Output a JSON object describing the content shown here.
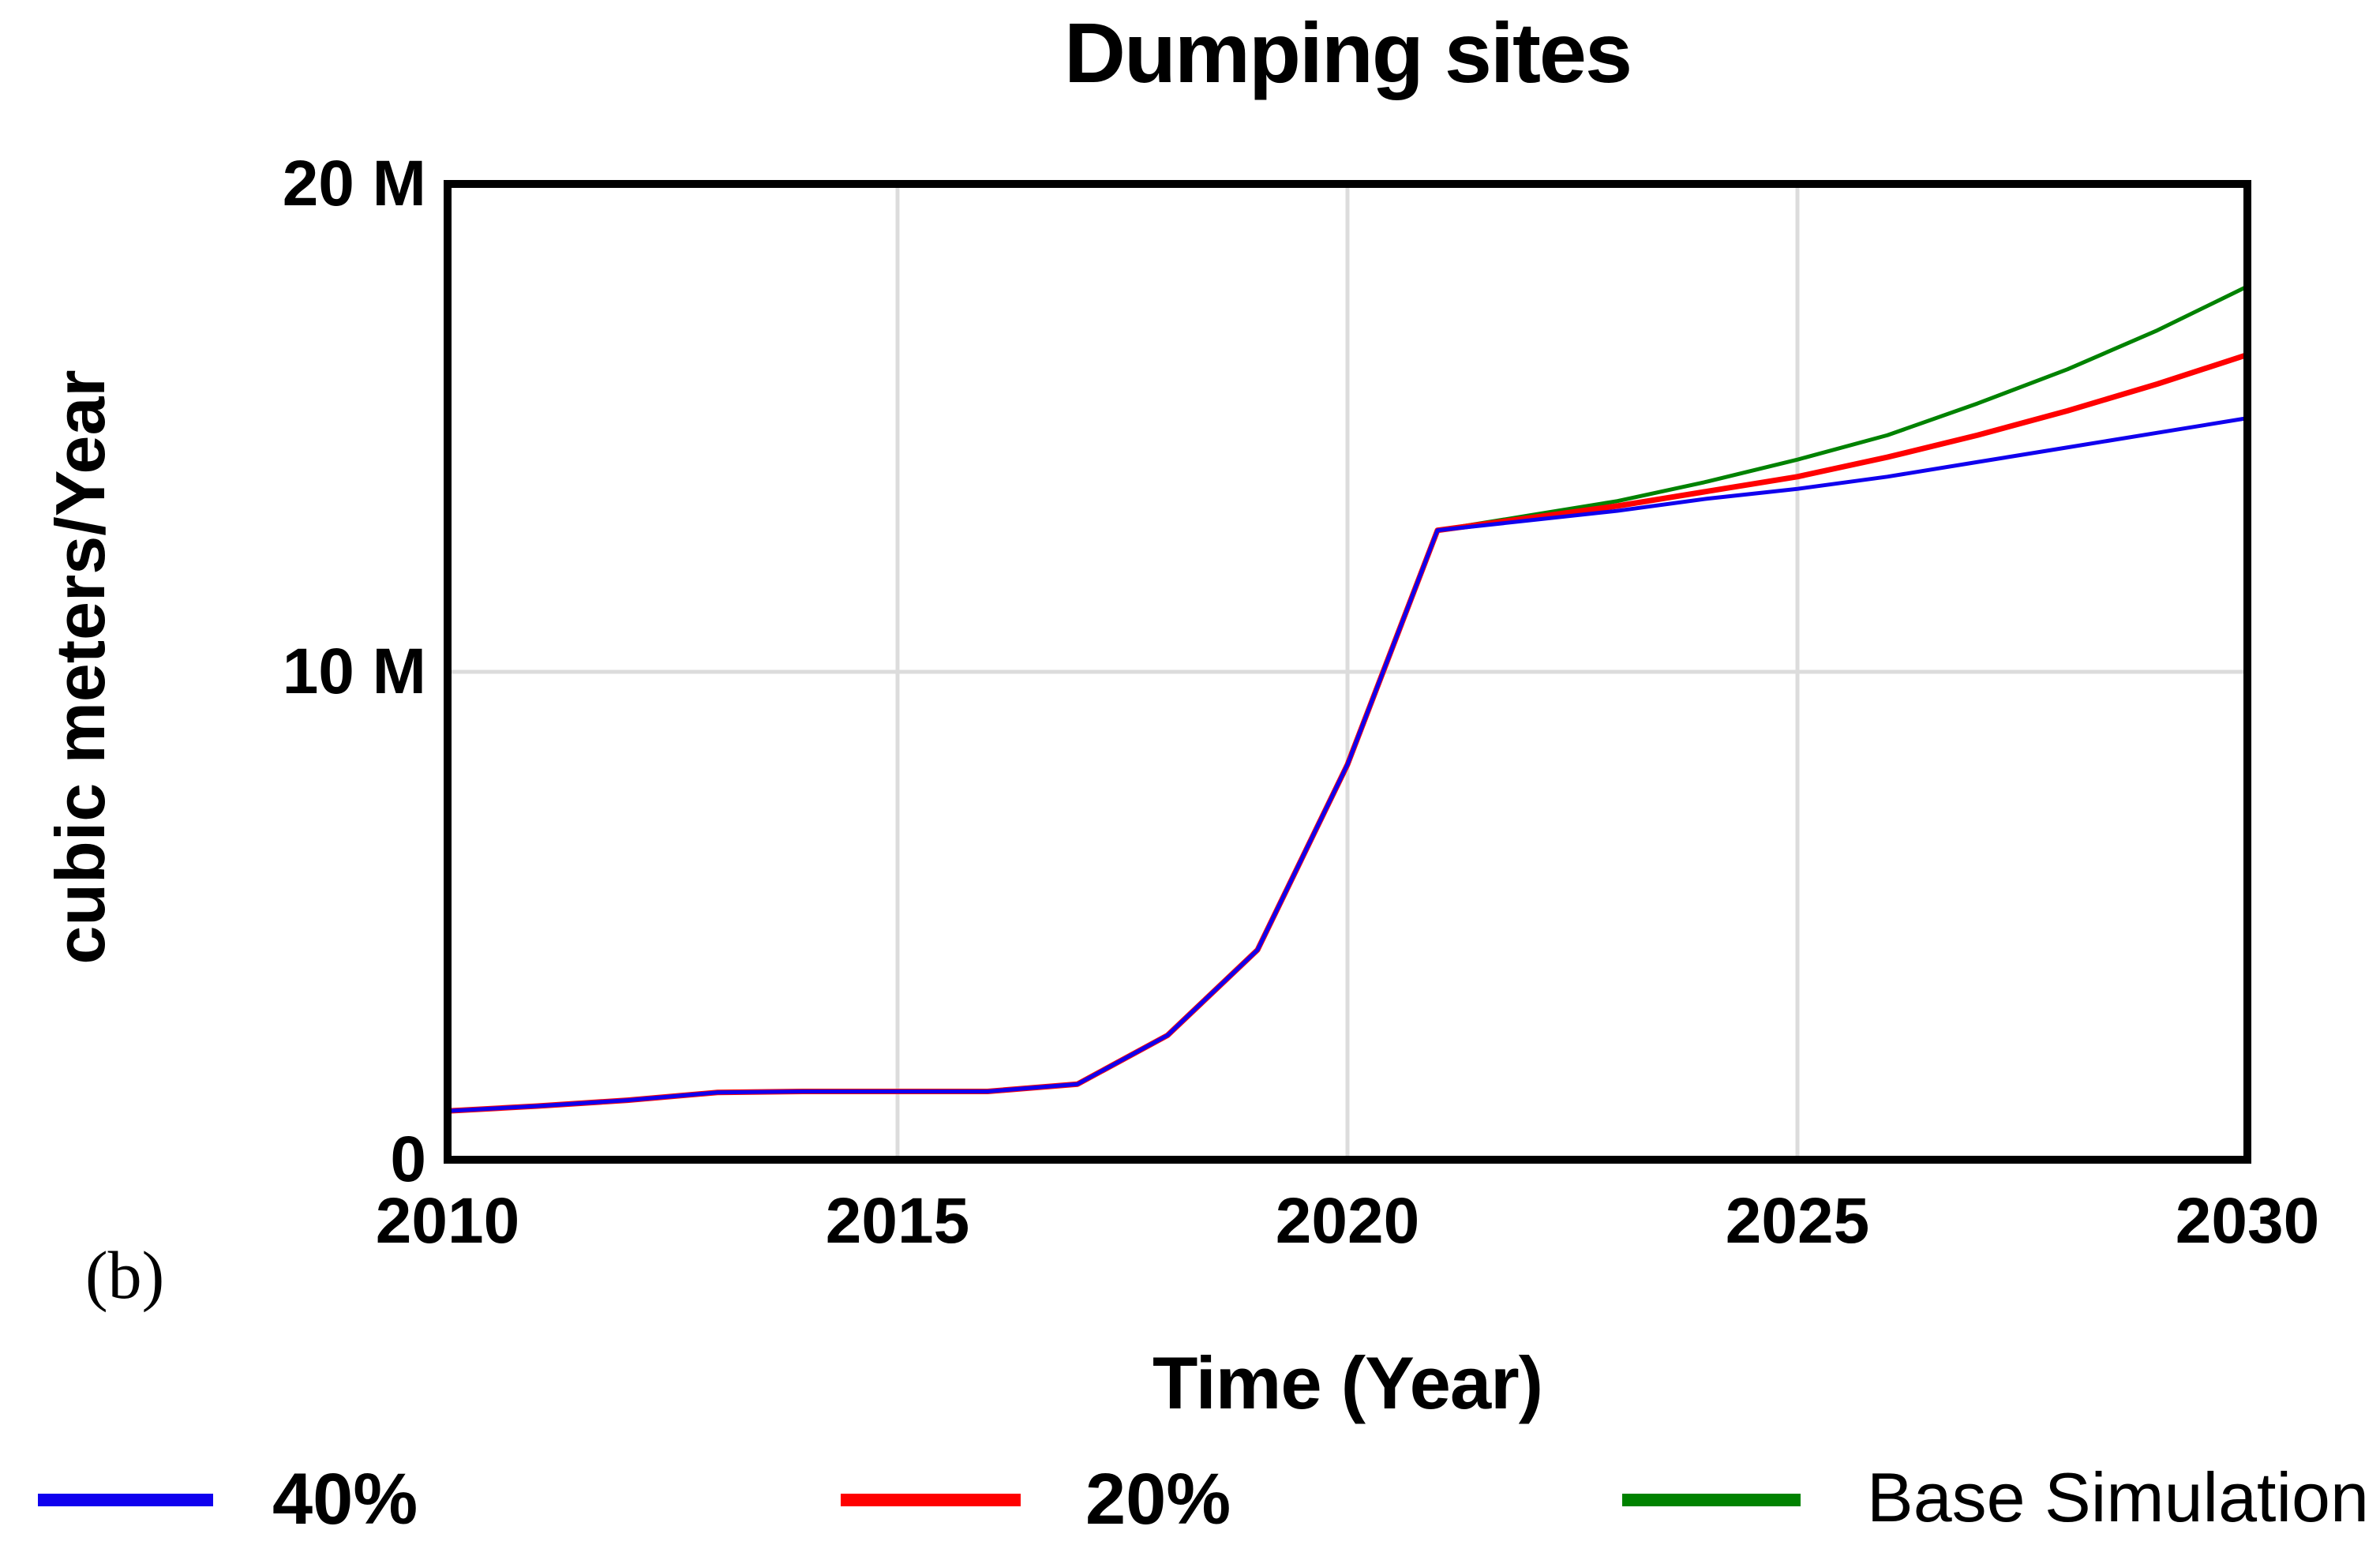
{
  "figure_label": "(b)",
  "chart_data": {
    "type": "line",
    "title": "Dumping sites",
    "xlabel": "Time (Year)",
    "ylabel": "cubic meters/Year",
    "y_unit_note": "values in millions of cubic meters per year (axis shows 'M')",
    "xlim": [
      2010,
      2030
    ],
    "ylim": [
      0,
      20
    ],
    "x_ticks": [
      2010,
      2015,
      2020,
      2025,
      2030
    ],
    "x_tick_labels": [
      "2010",
      "2015",
      "2020",
      "2025",
      "2030"
    ],
    "y_ticks": [
      {
        "value": 0,
        "label": "0"
      },
      {
        "value": 10,
        "label": "10 M"
      },
      {
        "value": 20,
        "label": "20 M"
      }
    ],
    "grid": {
      "vertical_years": [
        2015,
        2020,
        2025
      ],
      "horizontal_values": [
        10
      ],
      "color": "#dcdcdc"
    },
    "frame_color": "#000000",
    "legend_position": "bottom",
    "x": [
      2010,
      2011,
      2012,
      2013,
      2014,
      2015,
      2016,
      2017,
      2018,
      2019,
      2020,
      2021,
      2022,
      2023,
      2024,
      2025,
      2026,
      2027,
      2028,
      2029,
      2030
    ],
    "series": [
      {
        "name": "40%",
        "slug": "line-40-percent",
        "color": "#1000ee",
        "values": [
          1.0,
          1.1,
          1.22,
          1.38,
          1.4,
          1.4,
          1.4,
          1.55,
          2.55,
          4.3,
          8.1,
          12.9,
          13.1,
          13.3,
          13.55,
          13.75,
          14.0,
          14.3,
          14.6,
          14.9,
          15.2
        ]
      },
      {
        "name": "20%",
        "slug": "line-20-percent",
        "color": "#ff0000",
        "values": [
          1.0,
          1.1,
          1.22,
          1.38,
          1.4,
          1.4,
          1.4,
          1.55,
          2.55,
          4.3,
          8.1,
          12.9,
          13.15,
          13.4,
          13.7,
          14.0,
          14.4,
          14.85,
          15.35,
          15.9,
          16.5
        ]
      },
      {
        "name": "Base Simulation",
        "slug": "line-base-simulation",
        "color": "#008200",
        "values": [
          1.0,
          1.1,
          1.22,
          1.38,
          1.4,
          1.4,
          1.4,
          1.55,
          2.55,
          4.3,
          8.1,
          12.9,
          13.2,
          13.5,
          13.9,
          14.35,
          14.85,
          15.5,
          16.2,
          17.0,
          17.9
        ]
      }
    ]
  }
}
